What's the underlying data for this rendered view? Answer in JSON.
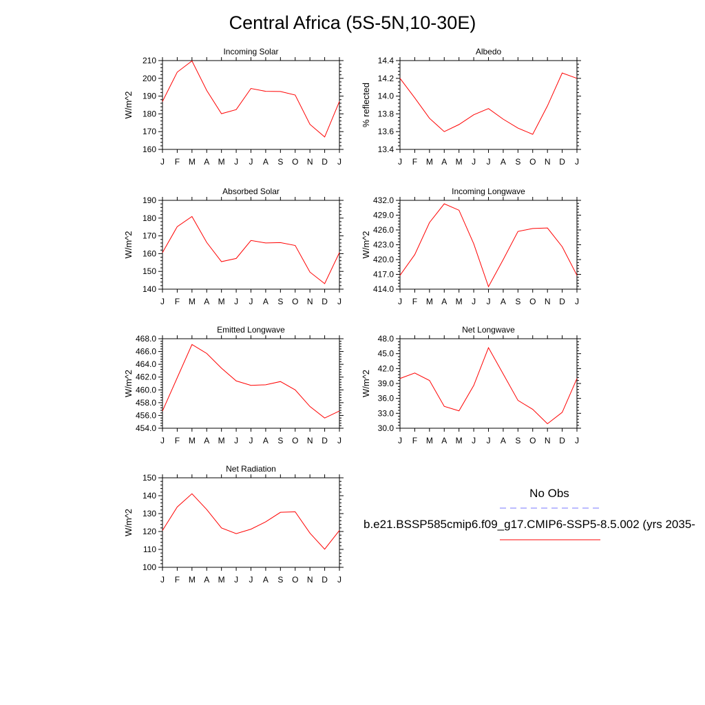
{
  "title": "Central Africa (5S-5N,10-30E)",
  "legend": {
    "obs_label": "No Obs",
    "obs_color": "#7777ff",
    "model_label": "b.e21.BSSP585cmip6.f09_g17.CMIP6-SSP5-8.5.002 (yrs 2035-",
    "model_color": "#ff0000"
  },
  "chart_data": [
    {
      "type": "line",
      "title": "Incoming Solar",
      "ylabel": "W/m^2",
      "x": [
        "J",
        "F",
        "M",
        "A",
        "M",
        "J",
        "J",
        "A",
        "S",
        "O",
        "N",
        "D",
        "J"
      ],
      "yticks": [
        "160",
        "170",
        "180",
        "190",
        "200",
        "210"
      ],
      "ylim": [
        160,
        210
      ],
      "series": [
        {
          "color": "#ff0000",
          "values": [
            187.0,
            203.5,
            209.8,
            193.2,
            180.1,
            182.4,
            194.3,
            192.7,
            192.6,
            190.6,
            174.1,
            167.0,
            187.0
          ]
        }
      ]
    },
    {
      "type": "line",
      "title": "Albedo",
      "ylabel": "% reflected",
      "x": [
        "J",
        "F",
        "M",
        "A",
        "M",
        "J",
        "J",
        "A",
        "S",
        "O",
        "N",
        "D",
        "J"
      ],
      "yticks": [
        "13.4",
        "13.6",
        "13.8",
        "14.0",
        "14.2",
        "14.4"
      ],
      "ylim": [
        13.4,
        14.4
      ],
      "series": [
        {
          "color": "#ff0000",
          "values": [
            14.2,
            13.98,
            13.75,
            13.6,
            13.68,
            13.79,
            13.86,
            13.74,
            13.64,
            13.57,
            13.89,
            14.26,
            14.2
          ]
        }
      ]
    },
    {
      "type": "line",
      "title": "Absorbed Solar",
      "ylabel": "W/m^2",
      "x": [
        "J",
        "F",
        "M",
        "A",
        "M",
        "J",
        "J",
        "A",
        "S",
        "O",
        "N",
        "D",
        "J"
      ],
      "yticks": [
        "140",
        "150",
        "160",
        "170",
        "180",
        "190"
      ],
      "ylim": [
        140,
        190
      ],
      "series": [
        {
          "color": "#ff0000",
          "values": [
            160.6,
            175.2,
            180.9,
            166.3,
            155.5,
            157.3,
            167.4,
            166.0,
            166.2,
            164.6,
            149.6,
            143.1,
            160.6
          ]
        }
      ]
    },
    {
      "type": "line",
      "title": "Incoming Longwave",
      "ylabel": "W/m^2",
      "x": [
        "J",
        "F",
        "M",
        "A",
        "M",
        "J",
        "J",
        "A",
        "S",
        "O",
        "N",
        "D",
        "J"
      ],
      "yticks": [
        "414.0",
        "417.0",
        "420.0",
        "423.0",
        "426.0",
        "429.0",
        "432.0"
      ],
      "ylim": [
        414,
        432
      ],
      "series": [
        {
          "color": "#ff0000",
          "values": [
            416.8,
            421.0,
            427.5,
            431.3,
            430.0,
            423.2,
            414.5,
            420.0,
            425.7,
            426.3,
            426.4,
            422.6,
            416.8
          ]
        }
      ]
    },
    {
      "type": "line",
      "title": "Emitted Longwave",
      "ylabel": "W/m^2",
      "x": [
        "J",
        "F",
        "M",
        "A",
        "M",
        "J",
        "J",
        "A",
        "S",
        "O",
        "N",
        "D",
        "J"
      ],
      "yticks": [
        "454.0",
        "456.0",
        "458.0",
        "460.0",
        "462.0",
        "464.0",
        "466.0",
        "468.0"
      ],
      "ylim": [
        454,
        468
      ],
      "series": [
        {
          "color": "#ff0000",
          "values": [
            456.7,
            461.9,
            467.1,
            465.7,
            463.4,
            461.4,
            460.7,
            460.8,
            461.3,
            460.0,
            457.4,
            455.6,
            456.7
          ]
        }
      ]
    },
    {
      "type": "line",
      "title": "Net Longwave",
      "ylabel": "W/m^2",
      "x": [
        "J",
        "F",
        "M",
        "A",
        "M",
        "J",
        "J",
        "A",
        "S",
        "O",
        "N",
        "D",
        "J"
      ],
      "yticks": [
        "30.0",
        "33.0",
        "36.0",
        "39.0",
        "42.0",
        "45.0",
        "48.0"
      ],
      "ylim": [
        30,
        48
      ],
      "series": [
        {
          "color": "#ff0000",
          "values": [
            40.0,
            41.1,
            39.6,
            34.4,
            33.5,
            38.6,
            46.2,
            40.9,
            35.6,
            33.8,
            30.9,
            33.2,
            40.0
          ]
        }
      ]
    },
    {
      "type": "line",
      "title": "Net Radiation",
      "ylabel": "W/m^2",
      "x": [
        "J",
        "F",
        "M",
        "A",
        "M",
        "J",
        "J",
        "A",
        "S",
        "O",
        "N",
        "D",
        "J"
      ],
      "yticks": [
        "100",
        "110",
        "120",
        "130",
        "140",
        "150"
      ],
      "ylim": [
        100,
        150
      ],
      "series": [
        {
          "color": "#ff0000",
          "values": [
            120.6,
            133.7,
            141.1,
            132.3,
            122.0,
            118.8,
            121.3,
            125.4,
            130.7,
            131.0,
            119.1,
            110.1,
            120.6
          ]
        }
      ]
    }
  ]
}
